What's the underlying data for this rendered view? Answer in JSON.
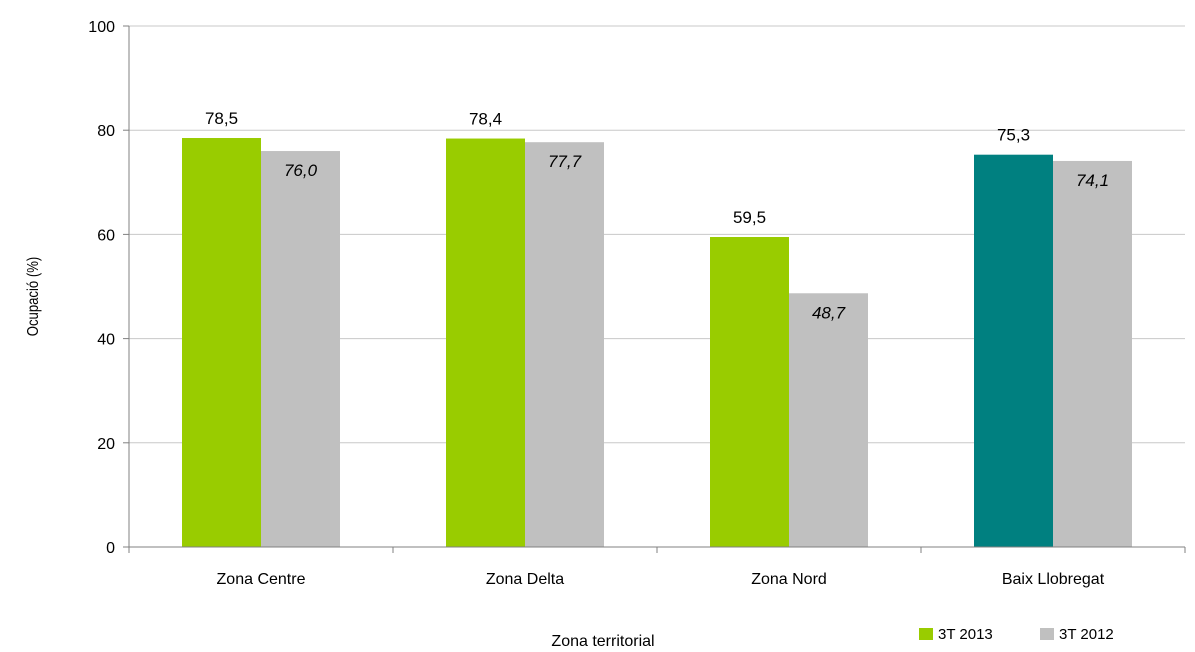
{
  "chart_data": {
    "type": "bar",
    "categories": [
      "Zona Centre",
      "Zona Delta",
      "Zona Nord",
      "Baix Llobregat"
    ],
    "series": [
      {
        "name": "3T 2013",
        "values": [
          78.5,
          78.4,
          59.5,
          75.3
        ],
        "labels": [
          "78,5",
          "78,4",
          "59,5",
          "75,3"
        ],
        "color": "#99cc00",
        "point_colors": [
          "#99cc00",
          "#99cc00",
          "#99cc00",
          "#008080"
        ]
      },
      {
        "name": "3T 2012",
        "values": [
          76.0,
          77.7,
          48.7,
          74.1
        ],
        "labels": [
          "76,0",
          "77,7",
          "48,7",
          "74,1"
        ],
        "color": "#c0c0c0",
        "point_colors": [
          "#c0c0c0",
          "#c0c0c0",
          "#c0c0c0",
          "#c0c0c0"
        ]
      }
    ],
    "xlabel": "Zona territorial",
    "ylabel": "Ocupació (%)",
    "ylim": [
      0,
      100
    ],
    "yticks": [
      0,
      20,
      40,
      60,
      80,
      100
    ],
    "grid": true,
    "legend_position": "bottom-right"
  }
}
